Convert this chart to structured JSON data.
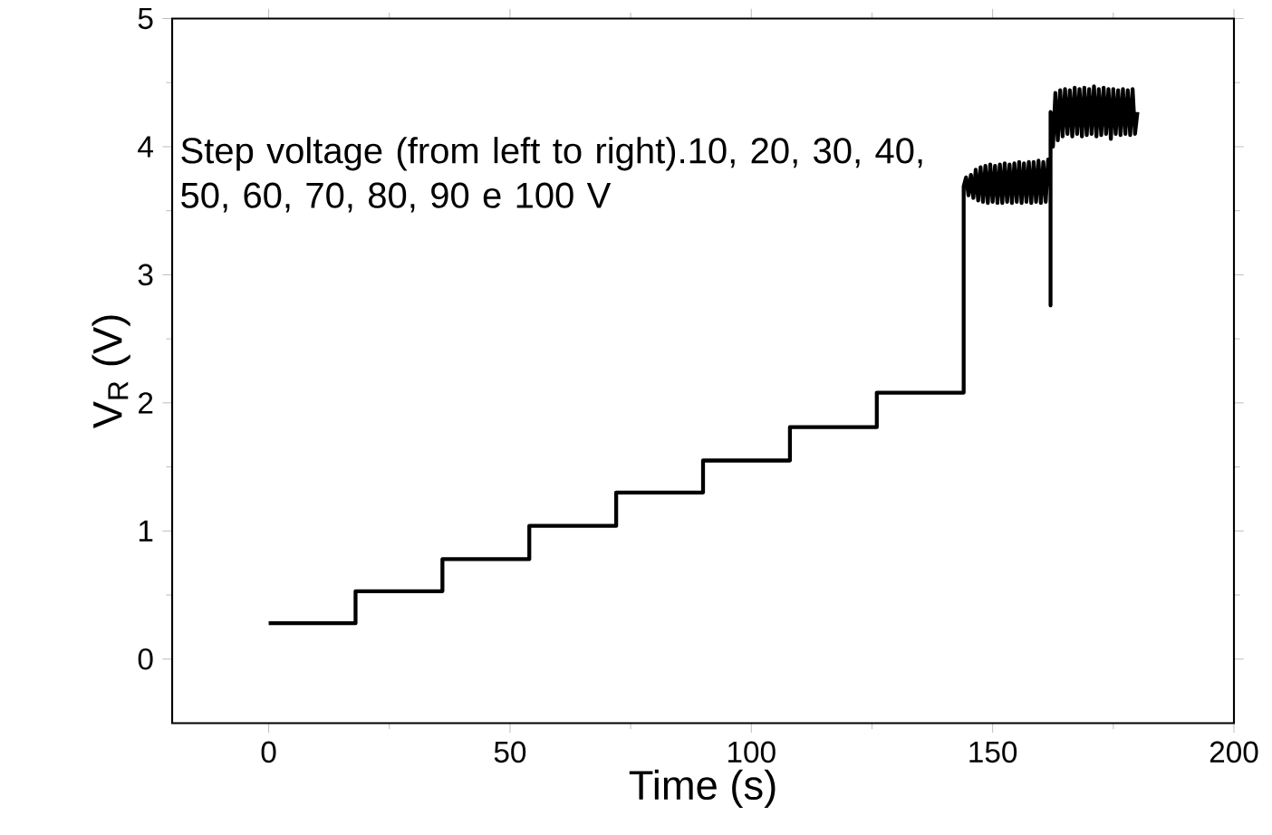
{
  "chart_data": {
    "type": "line",
    "xlabel": "Time (s)",
    "ylabel": "V$_{R}$ (V)",
    "annotations": [
      "Step voltage (from left to right).10, 20, 30, 40, 50, 60, 70, 80, 90 e 100 V"
    ],
    "xlim": [
      -20,
      200
    ],
    "xticks": [
      0,
      50,
      100,
      150,
      200
    ],
    "ylim": [
      -0.5,
      5
    ],
    "yticks": [
      0,
      1,
      2,
      3,
      4,
      5
    ],
    "grid": false,
    "marker": "none",
    "line_style": "solid",
    "series": [
      {
        "color": "#000000",
        "x": [
          0,
          18,
          18,
          36,
          36,
          54,
          54,
          72,
          72,
          90,
          90,
          108,
          108,
          126,
          126,
          144,
          144,
          144.5,
          145,
          145.5,
          146,
          146.5,
          147,
          147.5,
          148,
          148.5,
          149,
          149.5,
          150,
          150.5,
          151,
          151.5,
          152,
          152.5,
          153,
          153.5,
          154,
          154.5,
          155,
          155.5,
          156,
          156.5,
          157,
          157.5,
          158,
          158.5,
          159,
          159.5,
          160,
          160.5,
          161,
          161.5,
          162,
          162,
          162,
          162.5,
          163,
          163.5,
          164,
          164.5,
          165,
          165.5,
          166,
          166.5,
          167,
          167.5,
          168,
          168.5,
          169,
          169.5,
          170,
          170.5,
          171,
          171.5,
          172,
          172.5,
          173,
          173.5,
          174,
          174.5,
          175,
          175.5,
          176,
          176.5,
          177,
          177.5,
          178,
          178.5,
          179,
          179.5,
          180
        ],
        "values": [
          0.28,
          0.28,
          0.53,
          0.53,
          0.78,
          0.78,
          1.04,
          1.04,
          1.3,
          1.3,
          1.55,
          1.55,
          1.81,
          1.81,
          2.08,
          2.08,
          3.69,
          3.76,
          3.62,
          3.78,
          3.6,
          3.82,
          3.58,
          3.84,
          3.57,
          3.85,
          3.56,
          3.86,
          3.57,
          3.85,
          3.56,
          3.86,
          3.56,
          3.87,
          3.57,
          3.86,
          3.56,
          3.87,
          3.57,
          3.88,
          3.56,
          3.87,
          3.57,
          3.88,
          3.56,
          3.88,
          3.57,
          3.89,
          3.56,
          3.88,
          3.57,
          3.9,
          3.7,
          2.76,
          4.27,
          4.0,
          4.42,
          4.05,
          4.44,
          4.08,
          4.45,
          4.1,
          4.44,
          4.08,
          4.46,
          4.1,
          4.45,
          4.08,
          4.46,
          4.09,
          4.45,
          4.1,
          4.47,
          4.08,
          4.45,
          4.09,
          4.46,
          4.1,
          4.45,
          4.06,
          4.45,
          4.1,
          4.44,
          4.09,
          4.45,
          4.1,
          4.44,
          4.09,
          4.45,
          4.1,
          4.27
        ]
      }
    ]
  }
}
